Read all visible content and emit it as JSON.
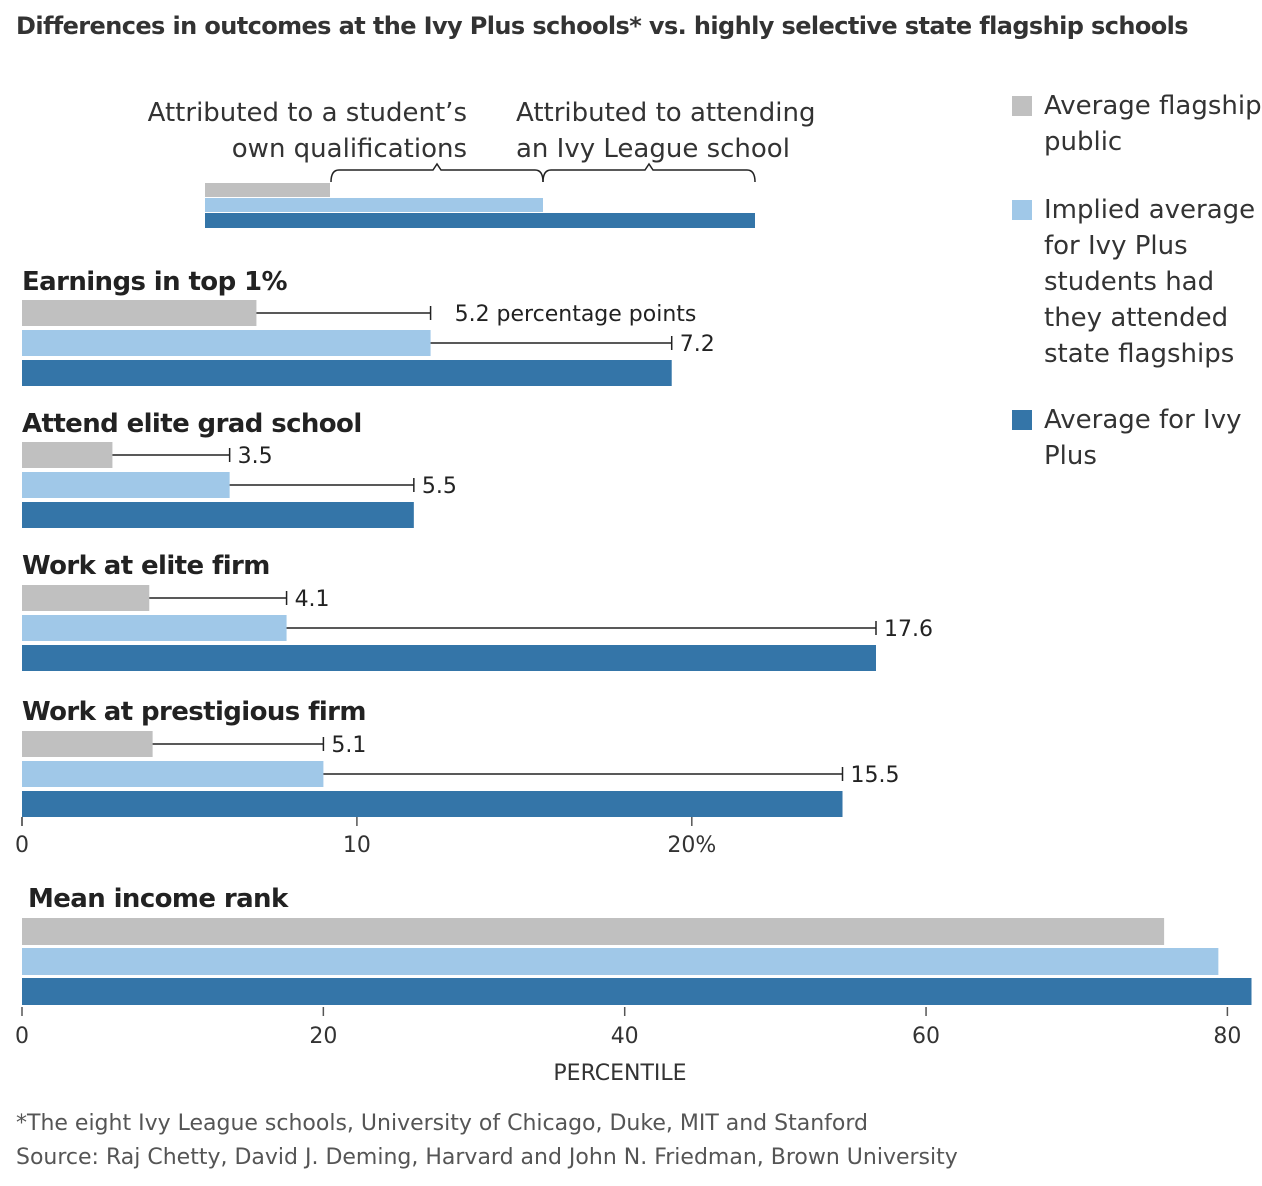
{
  "title": "Differences in outcomes at the Ivy Plus schools* vs. highly selective state flagship schools",
  "colors": {
    "flagship": "#c0c0c0",
    "implied": "#a0c8e8",
    "ivy": "#3475a8",
    "line": "#222222"
  },
  "key_diagram": {
    "left_label_line1": "Attributed to a student’s",
    "left_label_line2": "own qualifications",
    "right_label_line1": "Attributed to attending",
    "right_label_line2": "an Ivy League school"
  },
  "legend": [
    {
      "key": "flagship",
      "label": "Average flagship public"
    },
    {
      "key": "implied",
      "label": "Implied average for Ivy Plus students had they attended state flagships"
    },
    {
      "key": "ivy",
      "label": "Average for Ivy Plus"
    }
  ],
  "chart_data": [
    {
      "type": "bar",
      "orientation": "horizontal",
      "axis": {
        "ticks": [
          "0",
          "10",
          "20%"
        ],
        "tick_values": [
          0,
          10,
          20
        ],
        "xlim": [
          0,
          25.5
        ]
      },
      "groups": [
        {
          "label": "Earnings in top 1%",
          "values": {
            "flagship": 7.0,
            "implied": 12.2,
            "ivy": 19.4
          },
          "annotations": [
            {
              "text": "5.2 percentage points"
            },
            {
              "text": "7.2"
            }
          ]
        },
        {
          "label": "Attend elite grad school",
          "values": {
            "flagship": 2.7,
            "implied": 6.2,
            "ivy": 11.7
          },
          "annotations": [
            {
              "text": "3.5"
            },
            {
              "text": "5.5"
            }
          ]
        },
        {
          "label": "Work at elite firm",
          "values": {
            "flagship": 3.8,
            "implied": 7.9,
            "ivy": 25.5
          },
          "annotations": [
            {
              "text": "4.1"
            },
            {
              "text": "17.6"
            }
          ]
        },
        {
          "label": "Work at prestigious firm",
          "values": {
            "flagship": 3.9,
            "implied": 9.0,
            "ivy": 24.5
          },
          "annotations": [
            {
              "text": "5.1"
            },
            {
              "text": "15.5"
            }
          ]
        }
      ]
    },
    {
      "type": "bar",
      "orientation": "horizontal",
      "axis": {
        "ticks": [
          "0",
          "20",
          "40",
          "60",
          "80"
        ],
        "tick_values": [
          0,
          20,
          40,
          60,
          80
        ],
        "xlim": [
          0,
          81.5
        ],
        "xlabel": "PERCENTILE"
      },
      "groups": [
        {
          "label": "Mean income rank",
          "values": {
            "flagship": 75.8,
            "implied": 79.4,
            "ivy": 81.6
          }
        }
      ]
    }
  ],
  "footnote": "*The eight Ivy League schools, University of Chicago, Duke, MIT and Stanford",
  "source": "Source: Raj Chetty, David J. Deming, Harvard and John N. Friedman, Brown University"
}
